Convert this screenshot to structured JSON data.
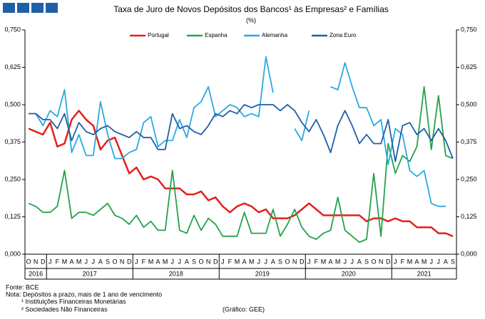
{
  "chart_data": {
    "type": "line",
    "title": "Taxa de Juro de Novos Depósitos dos Bancos¹ às Empresas² e Famílias",
    "subtitle": "(%)",
    "categories": [
      "O",
      "N",
      "D",
      "J",
      "F",
      "M",
      "A",
      "M",
      "J",
      "J",
      "A",
      "S",
      "O",
      "N",
      "D",
      "J",
      "F",
      "M",
      "A",
      "M",
      "J",
      "J",
      "A",
      "S",
      "O",
      "N",
      "D",
      "J",
      "F",
      "M",
      "A",
      "M",
      "J",
      "J",
      "A",
      "S",
      "O",
      "N",
      "D",
      "J",
      "F",
      "M",
      "A",
      "M",
      "J",
      "J",
      "A",
      "S",
      "O",
      "N",
      "D",
      "J",
      "F",
      "M",
      "A",
      "M",
      "J",
      "J",
      "A",
      "S"
    ],
    "years": [
      "2016",
      "2017",
      "2018",
      "2019",
      "2020",
      "2021"
    ],
    "ylim": [
      0,
      0.75
    ],
    "yticks": [
      {
        "value": 0,
        "label": "0,000"
      },
      {
        "value": 0.125,
        "label": "0,125"
      },
      {
        "value": 0.25,
        "label": "0,250"
      },
      {
        "value": 0.375,
        "label": "0,375"
      },
      {
        "value": 0.5,
        "label": "0,500"
      },
      {
        "value": 0.625,
        "label": "0,625"
      },
      {
        "value": 0.75,
        "label": "0,750"
      }
    ],
    "series": [
      {
        "name": "Portugal",
        "color": "#e3201b",
        "values": [
          0.42,
          0.41,
          0.4,
          0.44,
          0.36,
          0.37,
          0.45,
          0.48,
          0.45,
          0.43,
          0.35,
          0.38,
          0.39,
          0.33,
          0.27,
          0.29,
          0.25,
          0.26,
          0.25,
          0.22,
          0.22,
          0.22,
          0.2,
          0.2,
          0.21,
          0.18,
          0.19,
          0.16,
          0.14,
          0.16,
          0.17,
          0.16,
          0.14,
          0.15,
          0.12,
          0.12,
          0.12,
          0.13,
          0.15,
          0.17,
          0.15,
          0.13,
          0.13,
          0.13,
          0.13,
          0.13,
          0.13,
          0.11,
          0.12,
          0.12,
          0.11,
          0.12,
          0.11,
          0.11,
          0.09,
          0.09,
          0.09,
          0.07,
          0.07,
          0.06
        ]
      },
      {
        "name": "Espanha",
        "color": "#23a34a",
        "values": [
          0.17,
          0.16,
          0.14,
          0.14,
          0.16,
          0.28,
          0.12,
          0.14,
          0.14,
          0.13,
          0.15,
          0.17,
          0.13,
          0.12,
          0.1,
          0.13,
          0.09,
          0.11,
          0.08,
          0.08,
          0.28,
          0.08,
          0.07,
          0.13,
          0.08,
          0.12,
          0.1,
          0.06,
          0.06,
          0.06,
          0.14,
          0.07,
          0.07,
          0.07,
          0.15,
          0.06,
          0.1,
          0.15,
          0.09,
          0.06,
          0.05,
          0.07,
          0.08,
          0.19,
          0.08,
          0.06,
          0.04,
          0.05,
          0.27,
          0.06,
          0.37,
          0.27,
          0.33,
          0.31,
          0.36,
          0.56,
          0.35,
          0.53,
          0.33,
          0.32
        ]
      },
      {
        "name": "Alemanha",
        "color": "#2aa9e0",
        "values": [
          0.47,
          0.47,
          0.43,
          0.48,
          0.46,
          0.55,
          0.34,
          0.4,
          0.33,
          0.33,
          0.51,
          0.4,
          0.32,
          0.32,
          0.34,
          0.35,
          0.44,
          0.46,
          0.36,
          0.38,
          0.38,
          0.45,
          0.39,
          0.49,
          0.51,
          0.56,
          0.46,
          0.48,
          0.5,
          0.49,
          0.46,
          0.47,
          0.46,
          0.66,
          0.54,
          null,
          null,
          0.42,
          0.38,
          0.48,
          null,
          null,
          0.56,
          0.55,
          0.64,
          0.56,
          0.49,
          0.49,
          0.43,
          0.45,
          0.3,
          0.42,
          0.4,
          0.28,
          0.26,
          0.28,
          0.17,
          0.16,
          0.16,
          null
        ]
      },
      {
        "name": "Zona Euro",
        "color": "#1f5fa6",
        "values": [
          0.47,
          0.47,
          0.45,
          0.45,
          0.42,
          0.47,
          0.38,
          0.44,
          0.41,
          0.4,
          0.42,
          0.43,
          0.41,
          0.4,
          0.39,
          0.41,
          0.39,
          0.39,
          0.35,
          0.35,
          0.47,
          0.42,
          0.43,
          0.41,
          0.4,
          0.43,
          0.47,
          0.46,
          0.48,
          0.47,
          0.5,
          0.49,
          0.5,
          0.5,
          0.5,
          0.48,
          0.5,
          0.48,
          0.44,
          0.41,
          0.45,
          0.4,
          0.34,
          0.43,
          0.48,
          0.43,
          0.37,
          0.4,
          0.37,
          0.37,
          0.45,
          0.31,
          0.43,
          0.44,
          0.4,
          0.42,
          0.38,
          0.42,
          0.38,
          0.32
        ]
      }
    ]
  },
  "notes": [
    "Fonte: BCE",
    "Nota: Depósitos a prazo, mais de 1 ano de vencimento",
    "¹ Instituições Financeiras Monetárias",
    "² Sociedades Não Financeiras"
  ],
  "credit": "(Gráfico: GEE)"
}
